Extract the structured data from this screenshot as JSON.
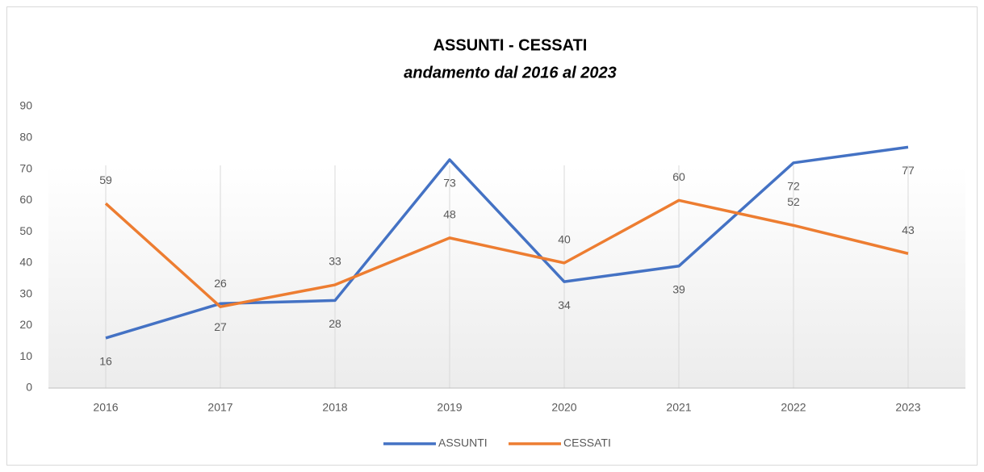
{
  "chart_data": {
    "type": "line",
    "title": "ASSUNTI - CESSATI",
    "subtitle": "andamento dal 2016 al 2023",
    "categories": [
      "2016",
      "2017",
      "2018",
      "2019",
      "2020",
      "2021",
      "2022",
      "2023"
    ],
    "series": [
      {
        "name": "ASSUNTI",
        "color": "#4472c4",
        "values": [
          16,
          27,
          28,
          73,
          34,
          39,
          72,
          77
        ]
      },
      {
        "name": "CESSATI",
        "color": "#ed7d31",
        "values": [
          59,
          26,
          33,
          48,
          40,
          60,
          52,
          43
        ]
      }
    ],
    "ylim": [
      0,
      90
    ],
    "yticks": [
      0,
      10,
      20,
      30,
      40,
      50,
      60,
      70,
      80,
      90
    ],
    "legend": "bottom"
  }
}
